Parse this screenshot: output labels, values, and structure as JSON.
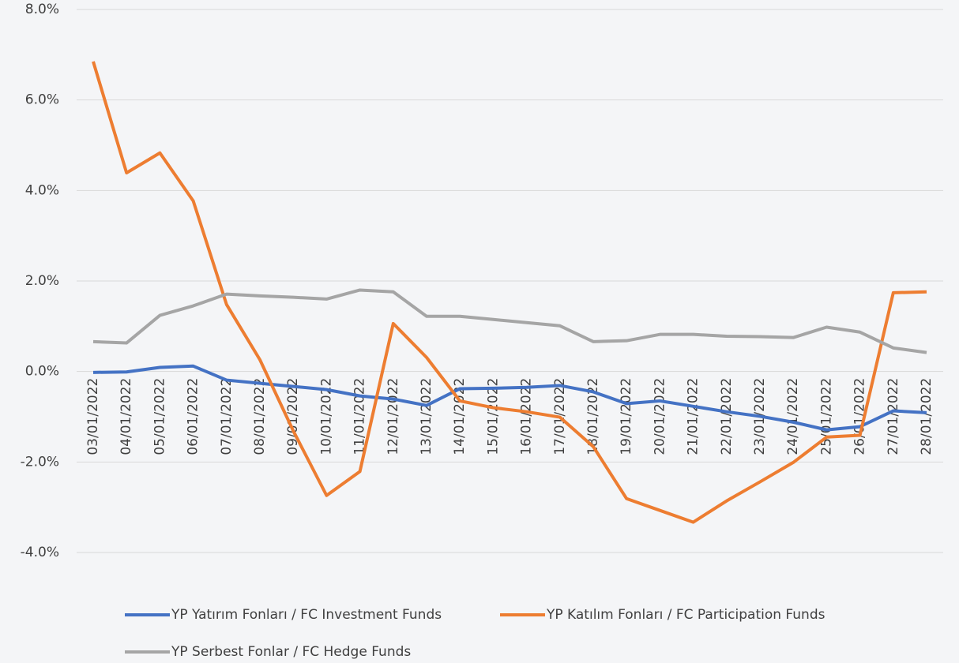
{
  "chart_data": {
    "type": "line",
    "categories": [
      "03/01/2022",
      "04/01/2022",
      "05/01/2022",
      "06/01/2022",
      "07/01/2022",
      "08/01/2022",
      "09/01/2022",
      "10/01/2022",
      "11/01/2022",
      "12/01/2022",
      "13/01/2022",
      "14/01/2022",
      "15/01/2022",
      "16/01/2022",
      "17/01/2022",
      "18/01/2022",
      "19/01/2022",
      "20/01/2022",
      "21/01/2022",
      "22/01/2022",
      "23/01/2022",
      "24/01/2022",
      "25/01/2022",
      "26/01/2022",
      "27/01/2022",
      "28/01/2022"
    ],
    "series": [
      {
        "name": "YP Yatırım Fonları / FC Investment Funds",
        "color": "#4472c4",
        "values": [
          -0.02,
          -0.01,
          0.09,
          0.12,
          -0.19,
          -0.26,
          -0.33,
          -0.4,
          -0.54,
          -0.61,
          -0.75,
          -0.38,
          -0.37,
          -0.35,
          -0.31,
          -0.45,
          -0.71,
          -0.65,
          -0.77,
          -0.89,
          -0.99,
          -1.12,
          -1.29,
          -1.22,
          -0.87,
          -0.91
        ]
      },
      {
        "name": "YP Katılım Fonları / FC Participation Funds",
        "color": "#ed7d31",
        "values": [
          6.85,
          4.39,
          4.83,
          3.77,
          1.48,
          0.26,
          -1.31,
          -2.74,
          -2.21,
          1.06,
          0.31,
          -0.65,
          -0.8,
          -0.89,
          -1.01,
          -1.66,
          -2.81,
          -3.07,
          -3.33,
          -2.86,
          -2.44,
          -2.01,
          -1.45,
          -1.41,
          1.74,
          1.76
        ]
      },
      {
        "name": "YP Serbest Fonlar / FC Hedge Funds",
        "color": "#a5a5a5",
        "values": [
          0.66,
          0.63,
          1.24,
          1.45,
          1.71,
          1.67,
          1.64,
          1.6,
          1.8,
          1.76,
          1.22,
          1.22,
          1.15,
          1.08,
          1.01,
          0.66,
          0.68,
          0.82,
          0.82,
          0.78,
          0.77,
          0.75,
          0.98,
          0.87,
          0.52,
          0.42
        ]
      }
    ],
    "ylim": [
      -4,
      8
    ],
    "yticks": [
      {
        "value": -4,
        "label": "-4.0%"
      },
      {
        "value": -2,
        "label": "-2.0%"
      },
      {
        "value": 0,
        "label": "0.0%"
      },
      {
        "value": 2,
        "label": "2.0%"
      },
      {
        "value": 4,
        "label": "4.0%"
      },
      {
        "value": 6,
        "label": "6.0%"
      },
      {
        "value": 8,
        "label": "8.0%"
      }
    ],
    "grid": true
  }
}
